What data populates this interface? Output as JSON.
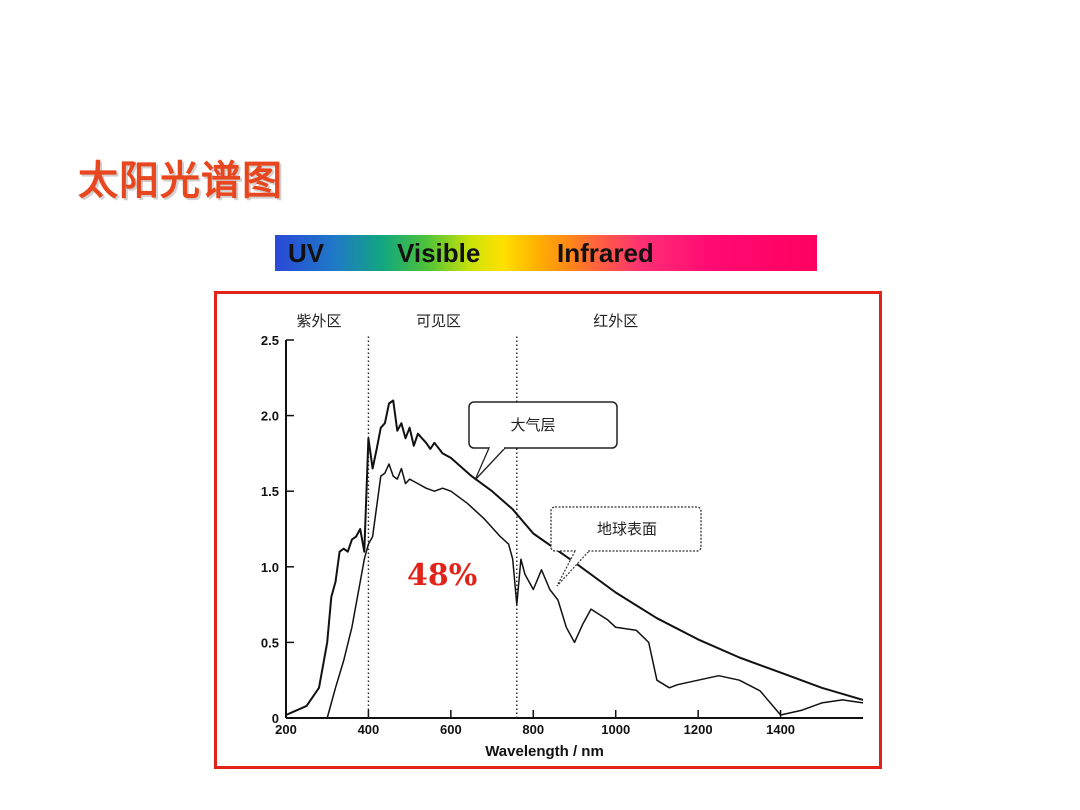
{
  "slide": {
    "title": "太阳光谱图"
  },
  "spectrum_bar": {
    "labels": [
      "UV",
      "Visible",
      "Infrared"
    ]
  },
  "chart_data": {
    "type": "line",
    "title": "",
    "xlabel": "Wavelength / nm",
    "ylabel": "",
    "xlim": [
      200,
      1600
    ],
    "ylim": [
      0,
      2.5
    ],
    "x_ticks": [
      200,
      400,
      600,
      800,
      1000,
      1200,
      1400
    ],
    "y_ticks": [
      "0",
      "0.5",
      "1.0",
      "1.5",
      "2.0",
      "2.5"
    ],
    "region_labels": [
      "紫外区",
      "可见区",
      "红外区"
    ],
    "region_dividers": [
      400,
      760
    ],
    "annotation": "48%",
    "series": [
      {
        "name": "大气层",
        "x": [
          200,
          250,
          280,
          300,
          310,
          320,
          330,
          340,
          350,
          360,
          370,
          380,
          390,
          400,
          405,
          410,
          420,
          430,
          440,
          450,
          460,
          470,
          480,
          490,
          500,
          510,
          520,
          530,
          540,
          550,
          560,
          580,
          600,
          650,
          700,
          750,
          800,
          900,
          1000,
          1100,
          1200,
          1300,
          1400,
          1500,
          1600
        ],
        "y": [
          0.02,
          0.08,
          0.2,
          0.5,
          0.8,
          0.9,
          1.1,
          1.12,
          1.1,
          1.18,
          1.2,
          1.25,
          1.1,
          1.85,
          1.75,
          1.65,
          1.78,
          1.92,
          1.95,
          2.08,
          2.1,
          1.9,
          1.95,
          1.85,
          1.92,
          1.8,
          1.88,
          1.85,
          1.82,
          1.78,
          1.82,
          1.75,
          1.72,
          1.6,
          1.5,
          1.38,
          1.22,
          1.03,
          0.83,
          0.66,
          0.52,
          0.4,
          0.3,
          0.2,
          0.12
        ]
      },
      {
        "name": "地球表面",
        "x": [
          300,
          320,
          340,
          360,
          380,
          390,
          400,
          410,
          420,
          430,
          440,
          450,
          460,
          470,
          480,
          490,
          500,
          520,
          540,
          560,
          580,
          600,
          640,
          680,
          720,
          740,
          750,
          760,
          770,
          780,
          800,
          820,
          840,
          860,
          880,
          900,
          920,
          940,
          980,
          1000,
          1050,
          1080,
          1100,
          1130,
          1150,
          1200,
          1250,
          1300,
          1350,
          1400,
          1450,
          1500,
          1550,
          1600
        ],
        "y": [
          0.0,
          0.2,
          0.38,
          0.6,
          0.9,
          1.05,
          1.15,
          1.2,
          1.4,
          1.6,
          1.62,
          1.68,
          1.6,
          1.58,
          1.65,
          1.55,
          1.58,
          1.55,
          1.52,
          1.5,
          1.52,
          1.5,
          1.42,
          1.32,
          1.2,
          1.15,
          1.05,
          0.75,
          1.05,
          0.95,
          0.85,
          0.98,
          0.85,
          0.78,
          0.6,
          0.5,
          0.62,
          0.72,
          0.65,
          0.6,
          0.58,
          0.5,
          0.25,
          0.2,
          0.22,
          0.25,
          0.28,
          0.25,
          0.18,
          0.02,
          0.05,
          0.1,
          0.12,
          0.1
        ]
      }
    ]
  }
}
